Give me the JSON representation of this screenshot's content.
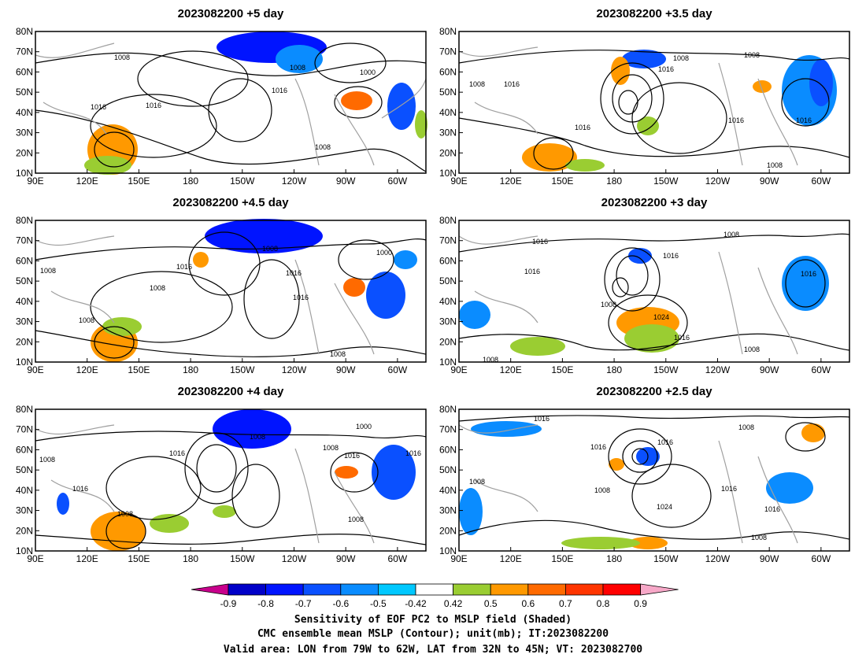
{
  "panels": [
    {
      "title": "2023082200 +5 day",
      "contour_labels": [
        "1008",
        "1008",
        "1000",
        "1016",
        "1016",
        "1016",
        "1008"
      ]
    },
    {
      "title": "2023082200 +3.5  day",
      "contour_labels": [
        "1008",
        "1008",
        "1016",
        "1008",
        "1016",
        "1016",
        "1016",
        "1016",
        "1008"
      ]
    },
    {
      "title": "2023082200 +4.5  day",
      "contour_labels": [
        "1008",
        "1016",
        "1008",
        "1000",
        "1016",
        "1008",
        "1016",
        "1008",
        "1008"
      ]
    },
    {
      "title": "2023082200 +3  day",
      "contour_labels": [
        "1008",
        "1016",
        "1016",
        "1016",
        "1008",
        "1024",
        "1016",
        "1016",
        "1008",
        "1008"
      ]
    },
    {
      "title": "2023082200 +4  day",
      "contour_labels": [
        "1008",
        "1000",
        "1008",
        "1016",
        "1008",
        "1016",
        "1016",
        "1016",
        "1008",
        "1008"
      ]
    },
    {
      "title": "2023082200 +2.5  day",
      "contour_labels": [
        "1016",
        "1008",
        "1016",
        "1016",
        "1008",
        "1008",
        "1024",
        "1016",
        "1016",
        "1008"
      ]
    }
  ],
  "axes": {
    "lon_ticks": [
      "90E",
      "120E",
      "150E",
      "180",
      "150W",
      "120W",
      "90W",
      "60W"
    ],
    "lat_ticks": [
      "10N",
      "20N",
      "30N",
      "40N",
      "50N",
      "60N",
      "70N",
      "80N"
    ]
  },
  "colorbar": {
    "tick_labels": [
      "-0.9",
      "-0.8",
      "-0.7",
      "-0.6",
      "-0.5",
      "-0.42",
      "0.42",
      "0.5",
      "0.6",
      "0.7",
      "0.8",
      "0.9"
    ],
    "colors": [
      "#c8008c",
      "#0000c8",
      "#0014ff",
      "#0a50ff",
      "#0a8cff",
      "#00c8ff",
      "#ffffff",
      "#9acd32",
      "#ff9900",
      "#ff6a00",
      "#ff3500",
      "#ff0000",
      "#f7a8c8"
    ]
  },
  "footer": {
    "line1": "Sensitivity of EOF PC2 to MSLP field (Shaded)",
    "line2": "CMC ensemble mean MSLP (Contour); unit(mb); IT:2023082200",
    "line3": "Valid area: LON from 79W to 62W, LAT from 32N to 45N; VT: 2023082700"
  }
}
